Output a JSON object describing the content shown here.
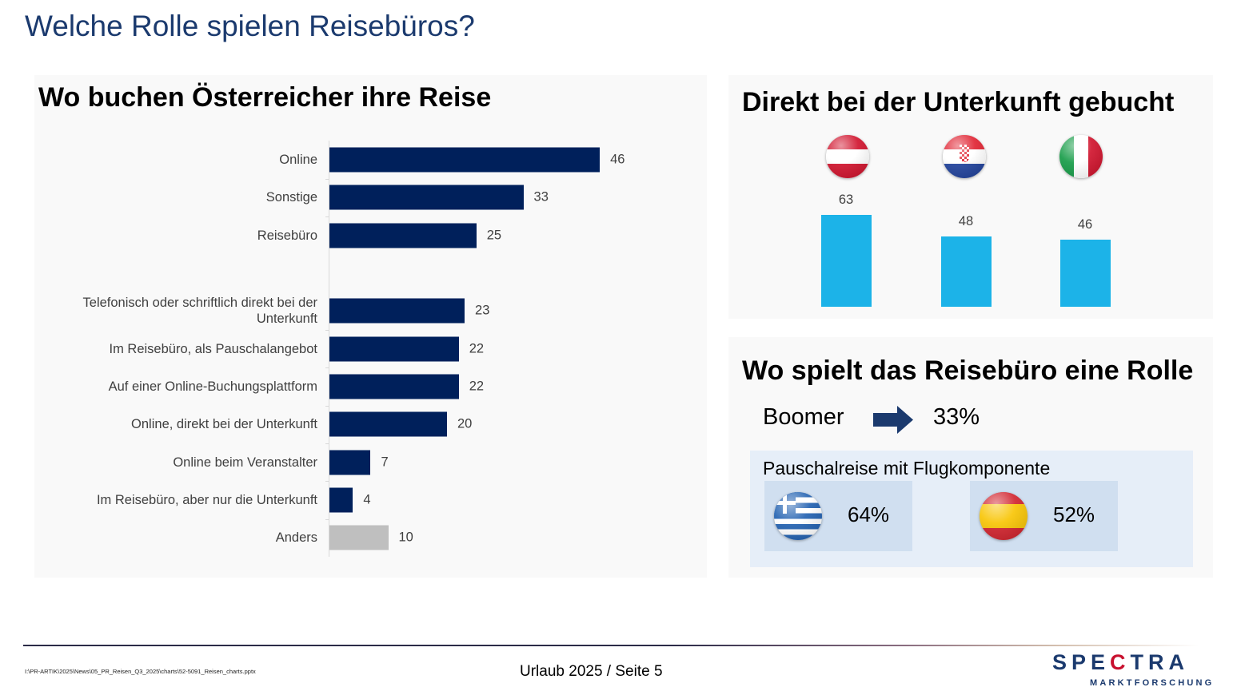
{
  "page": {
    "title": "Welche Rolle spielen Reisebüros?"
  },
  "left_panel": {
    "title": "Wo buchen Österreicher ihre Reise"
  },
  "right_top_panel": {
    "title": "Direkt bei der Unterkunft gebucht",
    "flags": [
      {
        "country": "Österreich",
        "icon": "austria-flag-icon"
      },
      {
        "country": "Kroatien",
        "icon": "croatia-flag-icon"
      },
      {
        "country": "Italien",
        "icon": "italy-flag-icon"
      }
    ]
  },
  "right_bottom_panel": {
    "title": "Wo spielt das Reisebüro eine Rolle",
    "boomer": {
      "label": "Boomer",
      "icon": "arrow-right-icon",
      "value": "33%"
    },
    "package_box": {
      "title": "Pauschalreise mit Flugkomponente",
      "items": [
        {
          "country": "Griechenland",
          "icon": "greece-flag-icon",
          "value": "64%"
        },
        {
          "country": "Spanien",
          "icon": "spain-flag-icon",
          "value": "52%"
        }
      ]
    }
  },
  "footer": {
    "path": "I:\\PR-ARTIK\\2025\\News\\05_PR_Reisen_Q3_2025\\charts\\52-5091_Reisen_charts.pptx",
    "center": "Urlaub 2025  /  Seite 5",
    "logo_main_pre": "SPE",
    "logo_main_c": "C",
    "logo_main_post": "TRA",
    "logo_sub": "MARKTFORSCHUNG"
  },
  "colors": {
    "title_blue": "#1b3a6e",
    "bar_navy": "#00205b",
    "bar_grey": "#bfbfbf",
    "bar_cyan": "#1cb3e8",
    "box_light": "#e6eef8",
    "tile_blue": "#d0dff0"
  },
  "chart_data": [
    {
      "type": "bar",
      "orientation": "horizontal",
      "title": "Wo buchen Österreicher ihre Reise",
      "xlabel": "",
      "ylabel": "",
      "xlim": [
        0,
        100
      ],
      "grid": false,
      "categories": [
        "Online",
        "Sonstige",
        "Reisebüro",
        "Telefonisch oder schriftlich direkt bei der Unterkunft",
        "Im Reisebüro, als Pauschalangebot",
        "Auf einer Online-Buchungsplattform",
        "Online, direkt bei der Unterkunft",
        "Online beim Veranstalter",
        "Im Reisebüro, aber nur die Unterkunft",
        "Anders"
      ],
      "values": [
        46,
        33,
        25,
        23,
        22,
        22,
        20,
        7,
        4,
        10
      ],
      "group_break_after_index": 2,
      "bar_colors": [
        "navy",
        "navy",
        "navy",
        "navy",
        "navy",
        "navy",
        "navy",
        "navy",
        "navy",
        "grey"
      ]
    },
    {
      "type": "bar",
      "orientation": "vertical",
      "title": "Direkt bei der Unterkunft gebucht",
      "categories": [
        "Österreich",
        "Kroatien",
        "Italien"
      ],
      "values": [
        63,
        48,
        46
      ],
      "ylim": [
        0,
        100
      ],
      "grid": false,
      "legend": "none"
    }
  ]
}
